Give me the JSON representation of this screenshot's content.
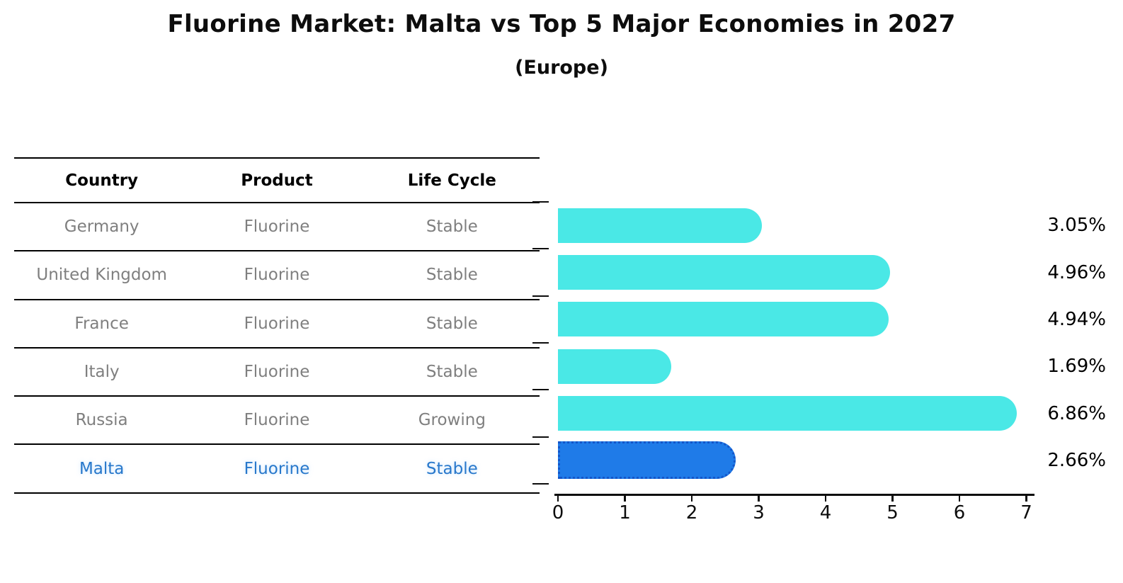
{
  "header": {
    "title": "Fluorine Market: Malta vs Top 5 Major Economies in 2027",
    "subtitle": "(Europe)"
  },
  "table": {
    "headers": [
      "Country",
      "Product",
      "Life Cycle"
    ],
    "rows": [
      {
        "country": "Germany",
        "product": "Fluorine",
        "life_cycle": "Stable",
        "highlight": false
      },
      {
        "country": "United Kingdom",
        "product": "Fluorine",
        "life_cycle": "Stable",
        "highlight": false
      },
      {
        "country": "France",
        "product": "Fluorine",
        "life_cycle": "Stable",
        "highlight": false
      },
      {
        "country": "Italy",
        "product": "Fluorine",
        "life_cycle": "Stable",
        "highlight": false
      },
      {
        "country": "Russia",
        "product": "Fluorine",
        "life_cycle": "Growing",
        "highlight": false
      },
      {
        "country": "Malta",
        "product": "Fluorine",
        "life_cycle": "Stable",
        "highlight": true
      }
    ]
  },
  "chart_data": {
    "type": "bar",
    "orientation": "horizontal",
    "title": "Fluorine Market: Malta vs Top 5 Major Economies in 2027",
    "subtitle": "(Europe)",
    "categories": [
      "Germany",
      "United Kingdom",
      "France",
      "Italy",
      "Russia",
      "Malta"
    ],
    "values": [
      3.05,
      4.96,
      4.94,
      1.69,
      6.86,
      2.66
    ],
    "value_labels": [
      "3.05%",
      "4.96%",
      "4.94%",
      "1.69%",
      "6.86%",
      "2.66%"
    ],
    "xlabel": "",
    "ylabel": "",
    "xlim": [
      0,
      7.2
    ],
    "x_ticks": [
      "0",
      "1",
      "2",
      "3",
      "4",
      "5",
      "6",
      "7"
    ],
    "grid": false,
    "legend": false,
    "highlight_index": 5
  },
  "colors": {
    "bar": "#4AE8E6",
    "highlight_bar": "#1F7BE8",
    "highlight_border": "#1456C9",
    "row_text": "#7f7f7f",
    "highlight_text": "#2878CB",
    "axis": "#0d0d0d"
  }
}
